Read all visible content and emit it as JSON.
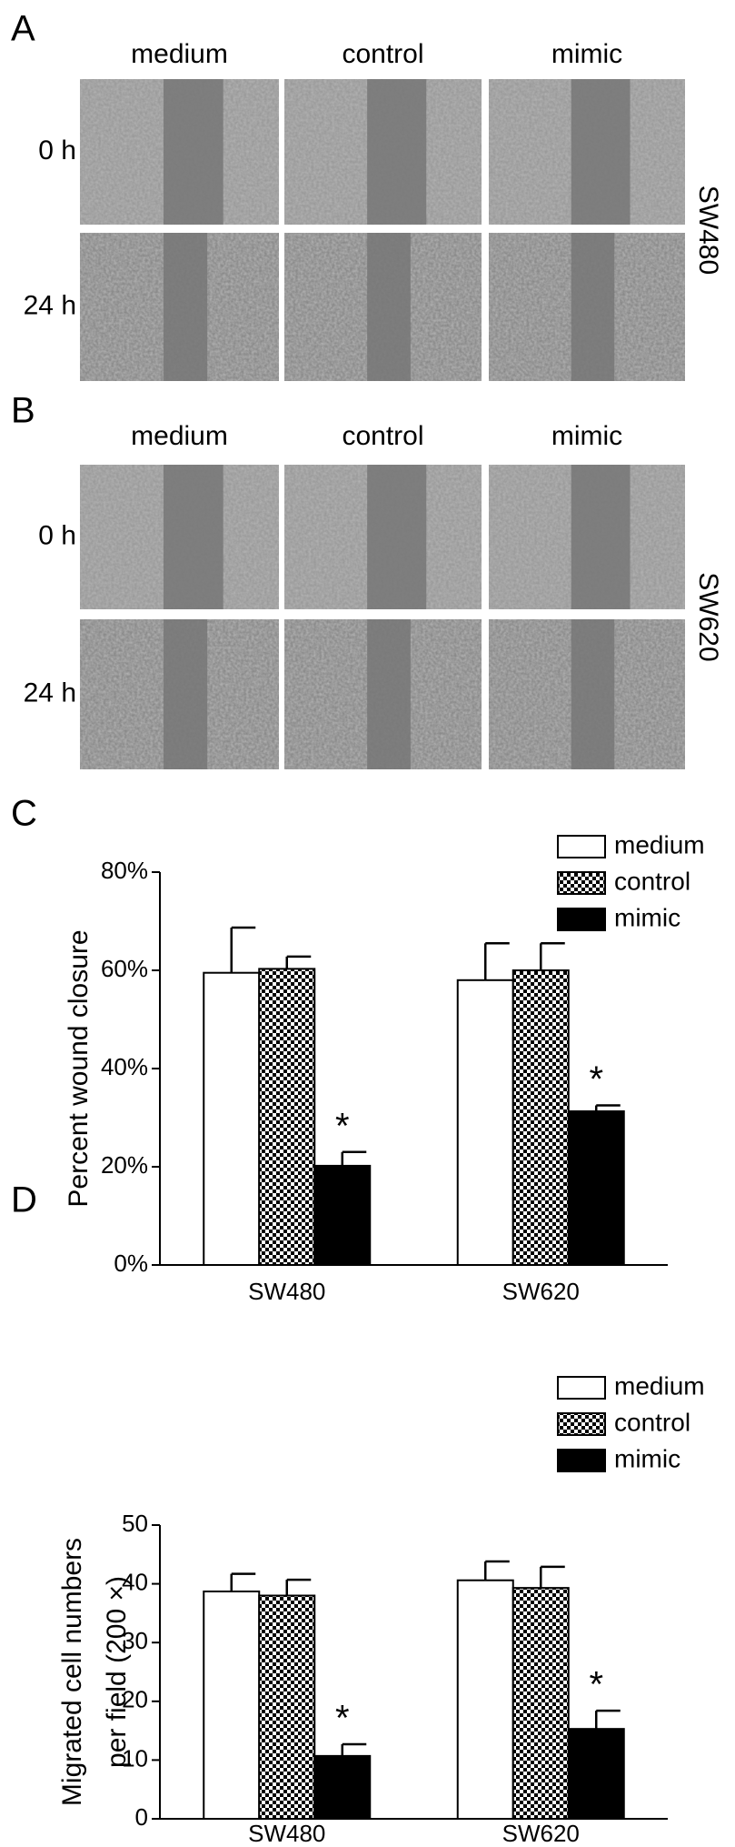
{
  "panels": [
    {
      "label": "A",
      "columns": [
        "medium",
        "control",
        "mimic"
      ],
      "rows": [
        "0 h",
        "24 h"
      ],
      "cell_line": "SW480"
    },
    {
      "label": "B",
      "columns": [
        "medium",
        "control",
        "mimic"
      ],
      "rows": [
        "0 h",
        "24 h"
      ],
      "cell_line": "SW620"
    }
  ],
  "chart_data": [
    {
      "type": "bar",
      "panel": "C",
      "ylabel": [
        "Percent wound closure"
      ],
      "categories": [
        "SW480",
        "SW620"
      ],
      "series": [
        {
          "name": "medium",
          "color": "#ffffff",
          "values": [
            59.5,
            58
          ],
          "errors": [
            9.2,
            7.5
          ]
        },
        {
          "name": "control",
          "color": "#000000",
          "pattern": "checker",
          "values": [
            60.3,
            60
          ],
          "errors": [
            2.5,
            5.5
          ]
        },
        {
          "name": "mimic",
          "color": "#000000",
          "values": [
            20.2,
            31.3
          ],
          "errors": [
            2.8,
            1.2
          ],
          "annotation": "*"
        }
      ],
      "ylim": [
        0,
        80
      ],
      "yticks": [
        {
          "value": 0,
          "label": "0%"
        },
        {
          "value": 20,
          "label": "20%"
        },
        {
          "value": 40,
          "label": "40%"
        },
        {
          "value": 60,
          "label": "60%"
        },
        {
          "value": 80,
          "label": "80%"
        }
      ],
      "grid": false,
      "legend": "top-right"
    },
    {
      "type": "bar",
      "panel": "D",
      "ylabel": [
        "Migrated cell numbers",
        "per field (200 ×)"
      ],
      "categories": [
        "SW480",
        "SW620"
      ],
      "series": [
        {
          "name": "medium",
          "color": "#ffffff",
          "values": [
            38.7,
            40.6
          ],
          "errors": [
            3,
            3.2
          ]
        },
        {
          "name": "control",
          "color": "#000000",
          "pattern": "checker",
          "values": [
            38,
            39.3
          ],
          "errors": [
            2.7,
            3.6
          ]
        },
        {
          "name": "mimic",
          "color": "#000000",
          "values": [
            10.7,
            15.3
          ],
          "errors": [
            2,
            3.1
          ],
          "annotation": "*"
        }
      ],
      "ylim": [
        0,
        50
      ],
      "yticks": [
        0,
        10,
        20,
        30,
        40,
        50
      ],
      "grid": false,
      "legend": "top-right"
    }
  ]
}
